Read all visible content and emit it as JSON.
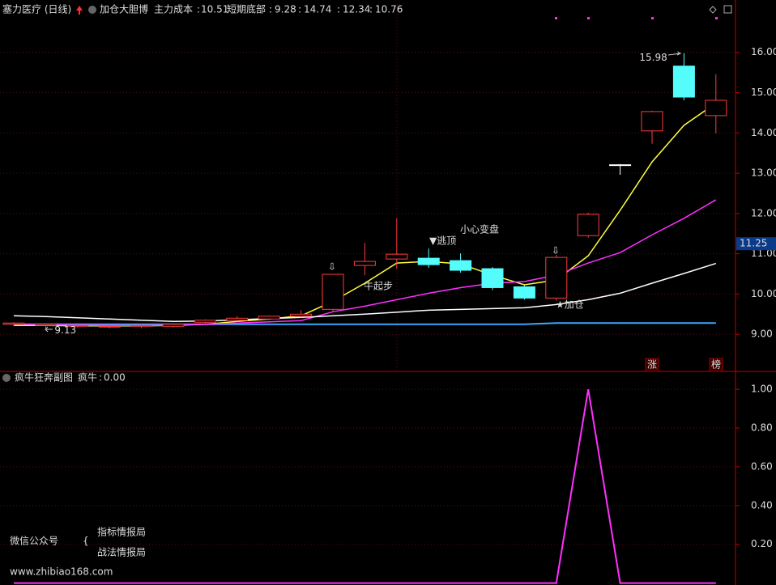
{
  "header": {
    "stock": "塞力医疗 (日线)",
    "indicator": "加仓大胆博",
    "separator": ":"
  },
  "chart_data": [
    {
      "type": "candlestick",
      "main_cost": {
        "label": "主力成本",
        "value": 10.51
      },
      "open": [
        9.25,
        9.22,
        9.2,
        9.18,
        9.2,
        9.2,
        9.3,
        9.35,
        9.38,
        9.45,
        9.62,
        10.71,
        10.87,
        10.89,
        10.83,
        10.63,
        10.18,
        9.9,
        11.45,
        13.21,
        14.05,
        15.66,
        14.43
      ],
      "high": [
        9.3,
        9.27,
        9.24,
        9.22,
        9.26,
        9.27,
        9.37,
        9.45,
        9.47,
        9.6,
        10.5,
        11.27,
        11.88,
        11.13,
        11.01,
        10.67,
        10.22,
        10.97,
        12.02,
        13.23,
        14.55,
        15.98,
        15.46
      ],
      "low": [
        9.2,
        9.13,
        9.17,
        9.15,
        9.15,
        9.17,
        9.27,
        9.32,
        9.35,
        9.42,
        9.55,
        10.47,
        10.63,
        10.65,
        10.53,
        10.1,
        9.86,
        9.84,
        11.4,
        12.96,
        13.73,
        14.81,
        13.99
      ],
      "close": [
        9.28,
        9.25,
        9.22,
        9.2,
        9.22,
        9.25,
        9.35,
        9.4,
        9.45,
        9.5,
        10.49,
        10.81,
        10.99,
        10.73,
        10.59,
        10.16,
        9.9,
        10.91,
        11.98,
        13.21,
        14.53,
        14.89,
        14.81
      ],
      "candle_colors": {
        "up": "#ff3c3c",
        "down": "#54fcfc",
        "flat": "#ffffff"
      },
      "series": [
        {
          "name": "短期底部",
          "color": "#3aa8ff",
          "values": [
            9.25,
            9.25,
            9.25,
            9.25,
            9.25,
            9.25,
            9.25,
            9.25,
            9.25,
            9.25,
            9.25,
            9.25,
            9.25,
            9.25,
            9.25,
            9.25,
            9.25,
            9.28,
            9.28,
            9.28,
            9.28,
            9.28,
            9.28
          ]
        },
        {
          "color": "#ffff3c",
          "values": [
            9.22,
            9.22,
            9.21,
            9.21,
            9.21,
            9.22,
            9.25,
            9.32,
            9.38,
            9.46,
            9.82,
            10.27,
            10.77,
            10.81,
            10.75,
            10.47,
            10.23,
            10.35,
            10.95,
            12.08,
            13.28,
            14.19,
            14.74
          ]
        },
        {
          "color": "#ff30ff",
          "values": [
            9.25,
            9.24,
            9.23,
            9.22,
            9.22,
            9.23,
            9.25,
            9.28,
            9.31,
            9.34,
            9.56,
            9.7,
            9.86,
            10.02,
            10.16,
            10.27,
            10.31,
            10.47,
            10.77,
            11.03,
            11.47,
            11.88,
            12.34
          ]
        },
        {
          "color": "#ffffff",
          "values": [
            9.46,
            9.44,
            9.41,
            9.38,
            9.35,
            9.32,
            9.33,
            9.36,
            9.39,
            9.42,
            9.46,
            9.5,
            9.55,
            9.6,
            9.62,
            9.64,
            9.66,
            9.74,
            9.86,
            10.02,
            10.27,
            10.51,
            10.76
          ]
        }
      ],
      "ylim": [
        8.1,
        17.2
      ],
      "yticks": [
        {
          "value": 9,
          "label": "9.00"
        },
        {
          "value": 10,
          "label": "10.00"
        },
        {
          "value": 11,
          "label": "11.00"
        },
        {
          "value": 12,
          "label": "12.00"
        },
        {
          "value": 13,
          "label": "13.00"
        },
        {
          "value": 14,
          "label": "14.00"
        },
        {
          "value": 15,
          "label": "15.00"
        },
        {
          "value": 16,
          "label": "16.00"
        }
      ],
      "grid": true,
      "marker_price": 11.25,
      "annotations": [
        "牛起步",
        "▼逃顶",
        "小心变盘",
        "★加仓",
        "⇩",
        "⇩"
      ],
      "badges": [
        "涨",
        "榜"
      ]
    },
    {
      "type": "line",
      "title": "疯牛狂奔副图",
      "series": [
        {
          "name": "疯牛",
          "color": "#ff30ff",
          "value_label": "0.00",
          "values": [
            0,
            0,
            0,
            0,
            0,
            0,
            0,
            0,
            0,
            0,
            0,
            0,
            0,
            0,
            0,
            0,
            0,
            0,
            1,
            0,
            0,
            0,
            0
          ]
        }
      ],
      "ylim": [
        -0.01,
        1.08
      ],
      "yticks": [
        {
          "value": 0.2,
          "label": "0.20"
        },
        {
          "value": 0.4,
          "label": "0.40"
        },
        {
          "value": 0.6,
          "label": "0.60"
        },
        {
          "value": 0.8,
          "label": "0.80"
        },
        {
          "value": 1,
          "label": "1.00"
        }
      ],
      "grid": true
    }
  ],
  "watermark": {
    "wechat": "微信公众号",
    "brace": "{",
    "names": [
      "指标情报局",
      "战法情报局"
    ],
    "url": "www.zhibiao168.com"
  }
}
